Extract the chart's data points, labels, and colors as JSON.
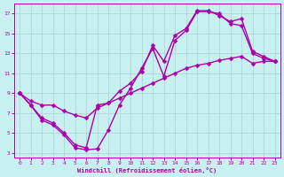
{
  "title": "",
  "xlabel": "Windchill (Refroidissement éolien,°C)",
  "ylabel": "",
  "bg_color": "#c8f0f0",
  "grid_color": "#b0d8d8",
  "line_color": "#aa00aa",
  "marker": "D",
  "markersize": 2.5,
  "linewidth": 1.0,
  "xlim": [
    -0.5,
    23.5
  ],
  "ylim": [
    2.5,
    18
  ],
  "xticks": [
    0,
    1,
    2,
    3,
    4,
    5,
    6,
    7,
    8,
    9,
    10,
    11,
    12,
    13,
    14,
    15,
    16,
    17,
    18,
    19,
    20,
    21,
    22,
    23
  ],
  "yticks": [
    3,
    5,
    7,
    9,
    11,
    13,
    15,
    17
  ],
  "line1_x": [
    0,
    1,
    2,
    3,
    4,
    5,
    6,
    7,
    8,
    9,
    10,
    11,
    12,
    13,
    14,
    15,
    16,
    17,
    18,
    19,
    20,
    21,
    22,
    23
  ],
  "line1_y": [
    9.0,
    7.8,
    6.3,
    5.8,
    4.8,
    3.5,
    3.3,
    3.4,
    5.3,
    7.8,
    9.5,
    11.5,
    13.5,
    10.7,
    14.3,
    15.3,
    17.2,
    17.2,
    17.0,
    16.0,
    15.8,
    13.0,
    12.5,
    12.2
  ],
  "line2_x": [
    0,
    1,
    2,
    3,
    4,
    5,
    6,
    7,
    8,
    9,
    10,
    11,
    12,
    13,
    14,
    15,
    16,
    17,
    18,
    19,
    20,
    21,
    22,
    23
  ],
  "line2_y": [
    9.0,
    7.8,
    6.5,
    6.0,
    5.0,
    3.8,
    3.5,
    7.8,
    8.0,
    9.2,
    10.0,
    11.2,
    13.8,
    12.2,
    14.8,
    15.5,
    17.3,
    17.3,
    16.8,
    16.2,
    16.5,
    13.2,
    12.7,
    12.2
  ],
  "line3_x": [
    0,
    1,
    2,
    3,
    4,
    5,
    6,
    7,
    8,
    9,
    10,
    11,
    12,
    13,
    14,
    15,
    16,
    17,
    18,
    19,
    20,
    21,
    22,
    23
  ],
  "line3_y": [
    9.0,
    8.2,
    7.8,
    7.8,
    7.2,
    6.8,
    6.5,
    7.5,
    8.0,
    8.5,
    9.0,
    9.5,
    10.0,
    10.5,
    11.0,
    11.5,
    11.8,
    12.0,
    12.3,
    12.5,
    12.7,
    12.0,
    12.2,
    12.2
  ]
}
